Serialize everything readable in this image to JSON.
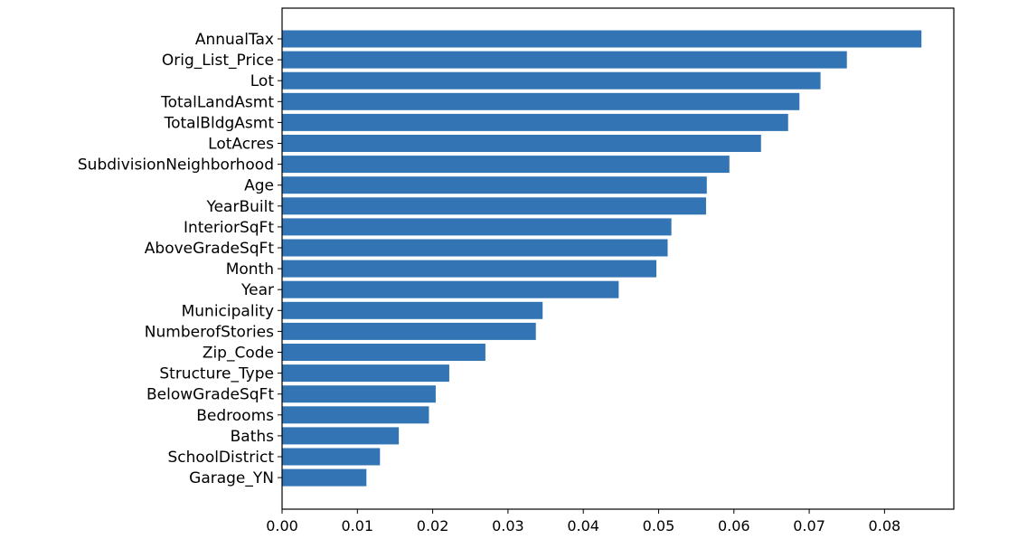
{
  "chart_data": {
    "type": "bar",
    "orientation": "horizontal",
    "categories": [
      "AnnualTax",
      "Orig_List_Price",
      "Lot",
      "TotalLandAsmt",
      "TotalBldgAsmt",
      "LotAcres",
      "SubdivisionNeighborhood",
      "Age",
      "YearBuilt",
      "InteriorSqFt",
      "AboveGradeSqFt",
      "Month",
      "Year",
      "Municipality",
      "NumberofStories",
      "Zip_Code",
      "Structure_Type",
      "BelowGradeSqFt",
      "Bedrooms",
      "Baths",
      "SchoolDistrict",
      "Garage_YN"
    ],
    "values": [
      0.0849,
      0.075,
      0.0715,
      0.0687,
      0.0672,
      0.0636,
      0.0594,
      0.0564,
      0.0563,
      0.0517,
      0.0512,
      0.0497,
      0.0447,
      0.0346,
      0.0337,
      0.027,
      0.0222,
      0.0204,
      0.0195,
      0.0155,
      0.013,
      0.0112
    ],
    "x_ticks": [
      "0.00",
      "0.01",
      "0.02",
      "0.03",
      "0.04",
      "0.05",
      "0.06",
      "0.07",
      "0.08"
    ],
    "xlim": [
      0,
      0.0892
    ],
    "title": "",
    "xlabel": "",
    "ylabel": "",
    "grid": false,
    "bar_color": "#3274b4"
  }
}
